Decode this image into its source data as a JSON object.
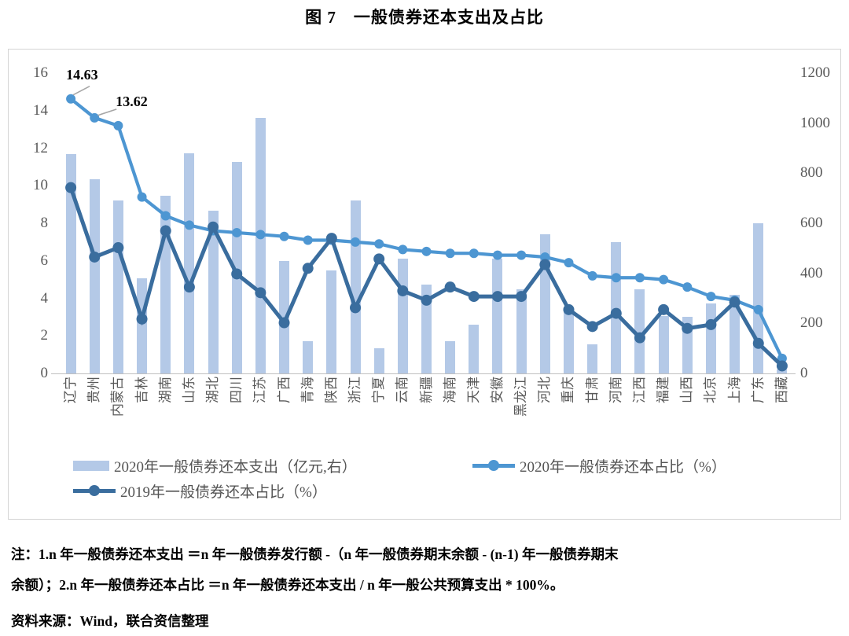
{
  "title": "图 7　一般债券还本支出及占比",
  "chart_data": {
    "type": "combo-bar-line",
    "categories": [
      "辽宁",
      "贵州",
      "内蒙古",
      "吉林",
      "湖南",
      "山东",
      "湖北",
      "四川",
      "江苏",
      "广西",
      "青海",
      "陕西",
      "浙江",
      "宁夏",
      "云南",
      "新疆",
      "海南",
      "天津",
      "安徽",
      "黑龙江",
      "河北",
      "重庆",
      "甘肃",
      "河南",
      "江西",
      "福建",
      "山西",
      "北京",
      "上海",
      "广东",
      "西藏"
    ],
    "series": [
      {
        "name": "2020年一般债券还本支出（亿元,右）",
        "type": "bar",
        "axis": "right",
        "color": "#b4c9e7",
        "values": [
          875,
          775,
          690,
          380,
          710,
          880,
          650,
          845,
          1020,
          450,
          130,
          410,
          690,
          100,
          460,
          355,
          130,
          195,
          460,
          335,
          555,
          245,
          115,
          525,
          335,
          230,
          225,
          280,
          315,
          600,
          15
        ]
      },
      {
        "name": "2020年一般债券还本占比（%）",
        "type": "line",
        "axis": "left",
        "color": "#4d96d2",
        "values": [
          14.63,
          13.62,
          13.2,
          9.4,
          8.4,
          7.9,
          7.6,
          7.5,
          7.4,
          7.3,
          7.1,
          7.1,
          7.0,
          6.9,
          6.6,
          6.5,
          6.4,
          6.4,
          6.3,
          6.3,
          6.2,
          5.9,
          5.2,
          5.1,
          5.1,
          5.0,
          4.6,
          4.1,
          3.9,
          3.4,
          0.8
        ]
      },
      {
        "name": "2019年一般债券还本占比（%）",
        "type": "line",
        "axis": "left",
        "color": "#3a6d9e",
        "values": [
          9.9,
          6.2,
          6.7,
          2.9,
          7.6,
          4.6,
          7.8,
          5.3,
          4.3,
          2.7,
          5.6,
          7.2,
          3.5,
          6.1,
          4.4,
          3.9,
          4.6,
          4.1,
          4.1,
          4.1,
          5.8,
          3.4,
          2.5,
          3.2,
          1.9,
          3.4,
          2.4,
          2.6,
          3.8,
          1.6,
          0.4
        ]
      }
    ],
    "left_axis": {
      "min": 0,
      "max": 16,
      "ticks": [
        0,
        2,
        4,
        6,
        8,
        10,
        12,
        14,
        16
      ]
    },
    "right_axis": {
      "min": 0,
      "max": 1200,
      "ticks": [
        0,
        200,
        400,
        600,
        800,
        1000,
        1200
      ]
    },
    "annotations": [
      {
        "text": "14.63",
        "series": 1,
        "index": 0
      },
      {
        "text": "13.62",
        "series": 1,
        "index": 1
      }
    ],
    "legend_position": "bottom",
    "grid": false
  },
  "notes": {
    "line1": "注：1.n 年一般债券还本支出 ＝n 年一般债券发行额 -（n 年一般债券期末余额 - (n-1) 年一般债券期末",
    "line2": "余额）；2.n 年一般债券还本占比 ＝n 年一般债券还本支出 / n 年一般公共预算支出 * 100%。"
  },
  "source": "资料来源：Wind，联合资信整理"
}
